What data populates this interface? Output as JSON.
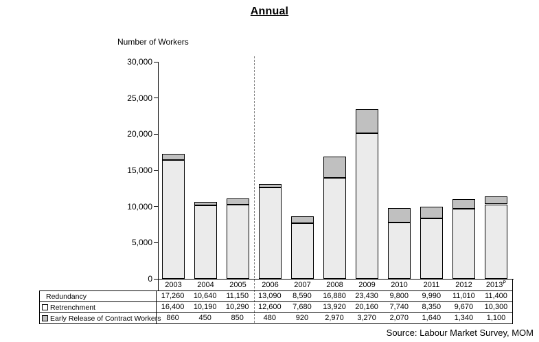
{
  "title": "Annual",
  "y_axis_title": "Number of Workers",
  "source": "Source: Labour Market Survey, MOM",
  "chart_data": {
    "type": "bar",
    "stacked": true,
    "title": "Annual",
    "ylabel": "Number of Workers",
    "categories": [
      "2003",
      "2004",
      "2005",
      "2006",
      "2007",
      "2008",
      "2009",
      "2010",
      "2011",
      "2012",
      "2013"
    ],
    "category_suffixes": [
      "",
      "",
      "",
      "",
      "",
      "",
      "",
      "",
      "",
      "",
      "P"
    ],
    "series": [
      {
        "name": "Retrenchment",
        "color": "#ebebeb",
        "values": [
          16400,
          10190,
          10290,
          12600,
          7680,
          13920,
          20160,
          7740,
          8350,
          9670,
          10300
        ]
      },
      {
        "name": "Early Release of Contract Workers",
        "color": "#c0c0c0",
        "values": [
          860,
          450,
          850,
          480,
          920,
          2970,
          3270,
          2070,
          1640,
          1340,
          1100
        ]
      }
    ],
    "totals": {
      "name": "Redundancy",
      "values": [
        17260,
        10640,
        11150,
        13090,
        8590,
        16880,
        23430,
        9800,
        9990,
        11010,
        11400
      ]
    },
    "y_axis": {
      "max": 30000,
      "ticks": [
        {
          "label": "30,000",
          "value": 30000
        },
        {
          "label": "25,000",
          "value": 25000
        },
        {
          "label": "20,000",
          "value": 20000
        },
        {
          "label": "15,000",
          "value": 15000
        },
        {
          "label": "10,000",
          "value": 10000
        },
        {
          "label": "5,000",
          "value": 5000
        },
        {
          "label": "0",
          "value": 0
        }
      ]
    },
    "divider": {
      "between": [
        "2005",
        "2006"
      ],
      "style": "dashed"
    },
    "grid": false,
    "legend_position": "table-left"
  },
  "table": {
    "rows": [
      {
        "label": "Redundancy",
        "marker": "none",
        "marker_color": "",
        "values": [
          "17,260",
          "10,640",
          "11,150",
          "13,090",
          "8,590",
          "16,880",
          "23,430",
          "9,800",
          "9,990",
          "11,010",
          "11,400"
        ]
      },
      {
        "label": "Retrenchment",
        "marker": "square",
        "marker_color": "#ffffff",
        "values": [
          "16,400",
          "10,190",
          "10,290",
          "12,600",
          "7,680",
          "13,920",
          "20,160",
          "7,740",
          "8,350",
          "9,670",
          "10,300"
        ]
      },
      {
        "label": "Early Release of Contract Workers",
        "marker": "square",
        "marker_color": "#c0c0c0",
        "values": [
          "860",
          "450",
          "850",
          "480",
          "920",
          "2,970",
          "3,270",
          "2,070",
          "1,640",
          "1,340",
          "1,100"
        ]
      }
    ]
  }
}
